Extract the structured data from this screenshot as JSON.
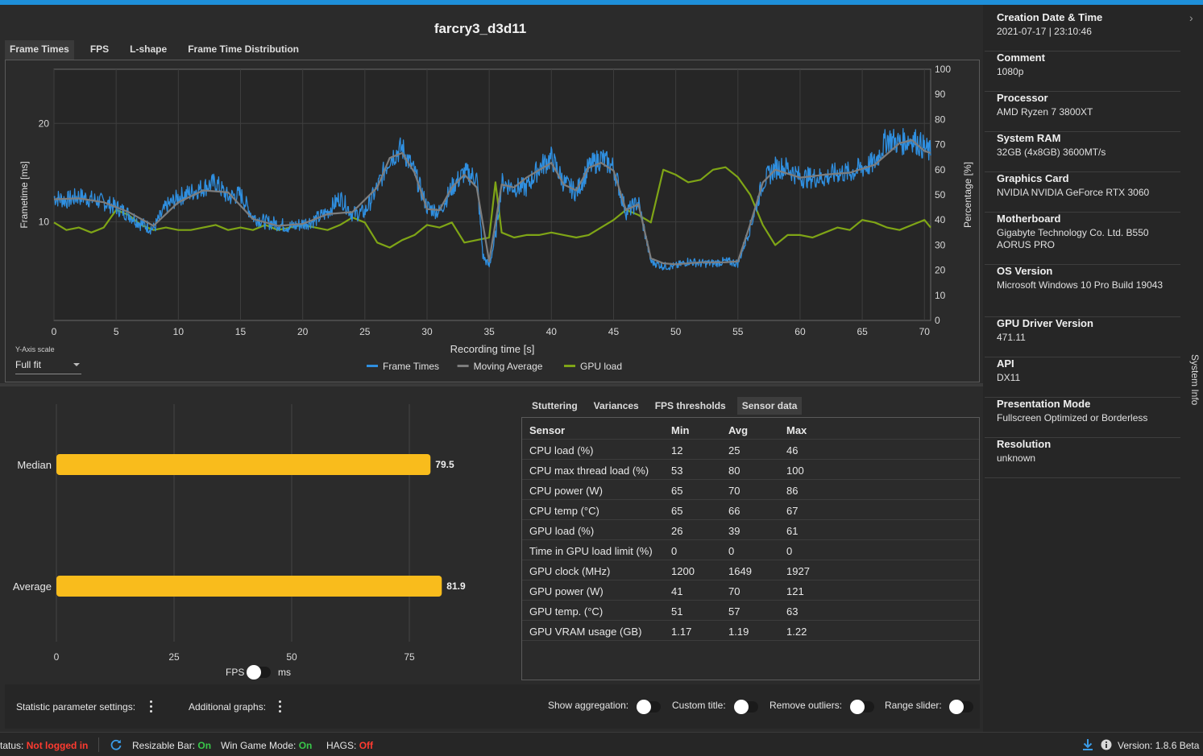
{
  "title": "farcry3_d3d11",
  "tabs": [
    {
      "label": "Frame Times",
      "active": true
    },
    {
      "label": "FPS",
      "active": false
    },
    {
      "label": "L-shape",
      "active": false
    },
    {
      "label": "Frame Time Distribution",
      "active": false
    }
  ],
  "chart_data": [
    {
      "type": "line",
      "xlabel": "Recording time [s]",
      "ylabel": "Frametime [ms]",
      "y2label": "Percentage [%]",
      "xlim": [
        0,
        70.5
      ],
      "ylim": [
        0,
        25.5
      ],
      "y2lim": [
        0,
        100
      ],
      "xticks": [
        0,
        5,
        10,
        15,
        20,
        25,
        30,
        35,
        40,
        45,
        50,
        55,
        60,
        65,
        70
      ],
      "yticks": [
        10,
        20
      ],
      "y2ticks": [
        0,
        10,
        20,
        30,
        40,
        50,
        60,
        70,
        80,
        90,
        100
      ],
      "grid": true,
      "legend_position": "bottom",
      "series": [
        {
          "name": "Frame Times",
          "color": "#2f8fe0",
          "axis": "left",
          "jitter": 0.9,
          "x": [
            0,
            1,
            2,
            3,
            4,
            5,
            6,
            7,
            8,
            9,
            10,
            11,
            12,
            13,
            14,
            15,
            16,
            17,
            18,
            19,
            20,
            21,
            22,
            23,
            24,
            25,
            26,
            27,
            28,
            29,
            30,
            31,
            32,
            33,
            34,
            34.5,
            35,
            35.5,
            36,
            37,
            38,
            39,
            40,
            41,
            42,
            43,
            44,
            45,
            46,
            47,
            48,
            49,
            50,
            51,
            52,
            53,
            54,
            55,
            56,
            57,
            58,
            59,
            60,
            61,
            62,
            63,
            64,
            65,
            66,
            67,
            68,
            69,
            70,
            70.5
          ],
          "y": [
            12.5,
            12.2,
            12.6,
            12.3,
            12.0,
            11.5,
            10.8,
            9.8,
            9.3,
            11.5,
            12.5,
            13.0,
            13.5,
            14.0,
            12.5,
            12.8,
            10.5,
            10.0,
            9.8,
            9.5,
            9.8,
            10.2,
            11.0,
            12.5,
            10.8,
            11.0,
            13.5,
            16.5,
            17.5,
            15.0,
            11.5,
            11.0,
            13.5,
            15.0,
            14.5,
            6.5,
            5.5,
            8.5,
            14.0,
            13.5,
            13.5,
            15.5,
            16.5,
            14.0,
            13.0,
            15.5,
            16.5,
            15.5,
            11.0,
            12.0,
            6.0,
            5.5,
            5.5,
            6.0,
            5.8,
            5.8,
            6.0,
            5.8,
            9.5,
            14.0,
            15.5,
            15.5,
            14.5,
            14.5,
            14.5,
            15.0,
            15.0,
            15.5,
            16.0,
            18.5,
            18.0,
            18.5,
            17.5,
            17.0
          ]
        },
        {
          "name": "Moving Average",
          "color": "#7d7d7d",
          "axis": "left",
          "jitter": 0,
          "x": [
            0,
            2,
            4,
            6,
            8,
            10,
            12,
            14,
            16,
            18,
            20,
            22,
            24,
            26,
            27,
            28,
            29,
            30,
            31,
            32,
            33,
            34,
            35,
            36,
            37,
            38,
            40,
            41,
            42,
            43,
            44,
            45,
            46,
            47,
            48,
            49,
            50,
            52,
            54,
            55,
            56,
            57,
            58,
            60,
            62,
            64,
            66,
            68,
            69,
            70,
            70.5
          ],
          "y": [
            12.3,
            12.4,
            12.0,
            11.0,
            9.6,
            12.0,
            13.2,
            13.0,
            10.3,
            9.6,
            9.8,
            10.8,
            11.0,
            13.5,
            16.5,
            17.0,
            15.0,
            11.3,
            11.2,
            13.5,
            14.8,
            13.5,
            6.0,
            13.8,
            13.5,
            14.5,
            16.0,
            13.8,
            13.2,
            15.5,
            16.0,
            15.2,
            11.2,
            11.8,
            6.3,
            5.8,
            5.7,
            5.9,
            5.9,
            6.0,
            9.8,
            14.0,
            15.3,
            14.5,
            14.8,
            15.0,
            15.8,
            18.0,
            18.3,
            17.2,
            17.0
          ]
        },
        {
          "name": "GPU load",
          "color": "#7fa516",
          "axis": "right",
          "jitter": 0,
          "x": [
            0,
            1,
            2,
            3,
            4,
            5,
            6,
            7,
            8,
            9,
            10,
            11,
            12,
            13,
            14,
            15,
            16,
            17,
            18,
            19,
            20,
            21,
            22,
            23,
            24,
            25,
            26,
            27,
            28,
            29,
            30,
            31,
            32,
            33,
            34,
            35,
            35.5,
            36,
            37,
            38,
            39,
            40,
            41,
            42,
            43,
            44,
            45,
            46,
            47,
            48,
            49,
            50,
            51,
            52,
            53,
            54,
            55,
            56,
            57,
            58,
            59,
            60,
            61,
            62,
            63,
            64,
            65,
            66,
            67,
            68,
            69,
            70,
            70.5
          ],
          "y": [
            39,
            36,
            37,
            35,
            37,
            44,
            42,
            38,
            36,
            37,
            36,
            36,
            37,
            38,
            36,
            37,
            36,
            38,
            36,
            37,
            38,
            37,
            36,
            38,
            41,
            39,
            31,
            29,
            32,
            34,
            38,
            37,
            39,
            31,
            32,
            33,
            55,
            35,
            33,
            34,
            34,
            35,
            34,
            33,
            34,
            37,
            40,
            44,
            42,
            39,
            60,
            58,
            55,
            56,
            60,
            61,
            57,
            50,
            38,
            30,
            34,
            34,
            33,
            35,
            37,
            36,
            40,
            39,
            37,
            36,
            38,
            40,
            37
          ]
        }
      ]
    },
    {
      "type": "bar",
      "orientation": "horizontal",
      "categories": [
        "Median",
        "Average"
      ],
      "values": [
        79.5,
        81.9
      ],
      "color": "#f9bc1c",
      "xticks": [
        0,
        25,
        50,
        75
      ],
      "xlim": [
        0,
        80
      ]
    }
  ],
  "yscale": {
    "label": "Y-Axis scale",
    "value": "Full fit"
  },
  "unit_toggle": {
    "left": "FPS",
    "right": "ms"
  },
  "subtabs": [
    {
      "label": "Stuttering",
      "active": false
    },
    {
      "label": "Variances",
      "active": false
    },
    {
      "label": "FPS thresholds",
      "active": false
    },
    {
      "label": "Sensor data",
      "active": true
    }
  ],
  "sensor_table": {
    "headers": [
      "Sensor",
      "Min",
      "Avg",
      "Max"
    ],
    "rows": [
      [
        "CPU load (%)",
        "12",
        "25",
        "46"
      ],
      [
        "CPU max thread load (%)",
        "53",
        "80",
        "100"
      ],
      [
        "CPU power (W)",
        "65",
        "70",
        "86"
      ],
      [
        "CPU temp (°C)",
        "65",
        "66",
        "67"
      ],
      [
        "GPU load (%)",
        "26",
        "39",
        "61"
      ],
      [
        "Time in GPU load limit (%)",
        "0",
        "0",
        "0"
      ],
      [
        "GPU clock (MHz)",
        "1200",
        "1649",
        "1927"
      ],
      [
        "GPU power (W)",
        "41",
        "70",
        "121"
      ],
      [
        "GPU temp. (°C)",
        "51",
        "57",
        "63"
      ],
      [
        "GPU VRAM usage (GB)",
        "1.17",
        "1.19",
        "1.22"
      ]
    ]
  },
  "bottom": {
    "stat_settings": "Statistic parameter settings:",
    "additional_graphs": "Additional graphs:",
    "show_aggregation": "Show aggregation:",
    "custom_title": "Custom title:",
    "remove_outliers": "Remove outliers:",
    "range_slider": "Range slider:"
  },
  "status": {
    "status_label": "tatus:",
    "status_value": "Not logged in",
    "resizable_bar_label": "Resizable Bar:",
    "resizable_bar_value": "On",
    "win_game_mode_label": "Win Game Mode:",
    "win_game_mode_value": "On",
    "hags_label": "HAGS:",
    "hags_value": "Off",
    "version": "Version: 1.8.6 Beta"
  },
  "system_info": {
    "tab_label": "System Info",
    "items": [
      {
        "key": "Creation Date & Time",
        "value": "2021-07-17  |  23:10:46"
      },
      {
        "key": "Comment",
        "value": "1080p"
      },
      {
        "key": "Processor",
        "value": "AMD Ryzen 7 3800XT"
      },
      {
        "key": "System RAM",
        "value": "32GB (4x8GB) 3600MT/s"
      },
      {
        "key": "Graphics Card",
        "value": "NVIDIA NVIDIA GeForce RTX 3060"
      },
      {
        "key": "Motherboard",
        "value": "Gigabyte Technology Co. Ltd. B550 AORUS PRO"
      },
      {
        "key": "OS Version",
        "value": "Microsoft Windows 10 Pro Build 19043"
      },
      {
        "key": "GPU Driver Version",
        "value": "471.11"
      },
      {
        "key": "API",
        "value": "DX11"
      },
      {
        "key": "Presentation Mode",
        "value": "Fullscreen Optimized or Borderless"
      },
      {
        "key": "Resolution",
        "value": "unknown"
      }
    ]
  },
  "colors": {
    "accent": "#1e8fd9",
    "bar": "#f9bc1c",
    "frame_times": "#2f8fe0",
    "gpu_load": "#7fa516",
    "moving_avg": "#7d7d7d"
  }
}
